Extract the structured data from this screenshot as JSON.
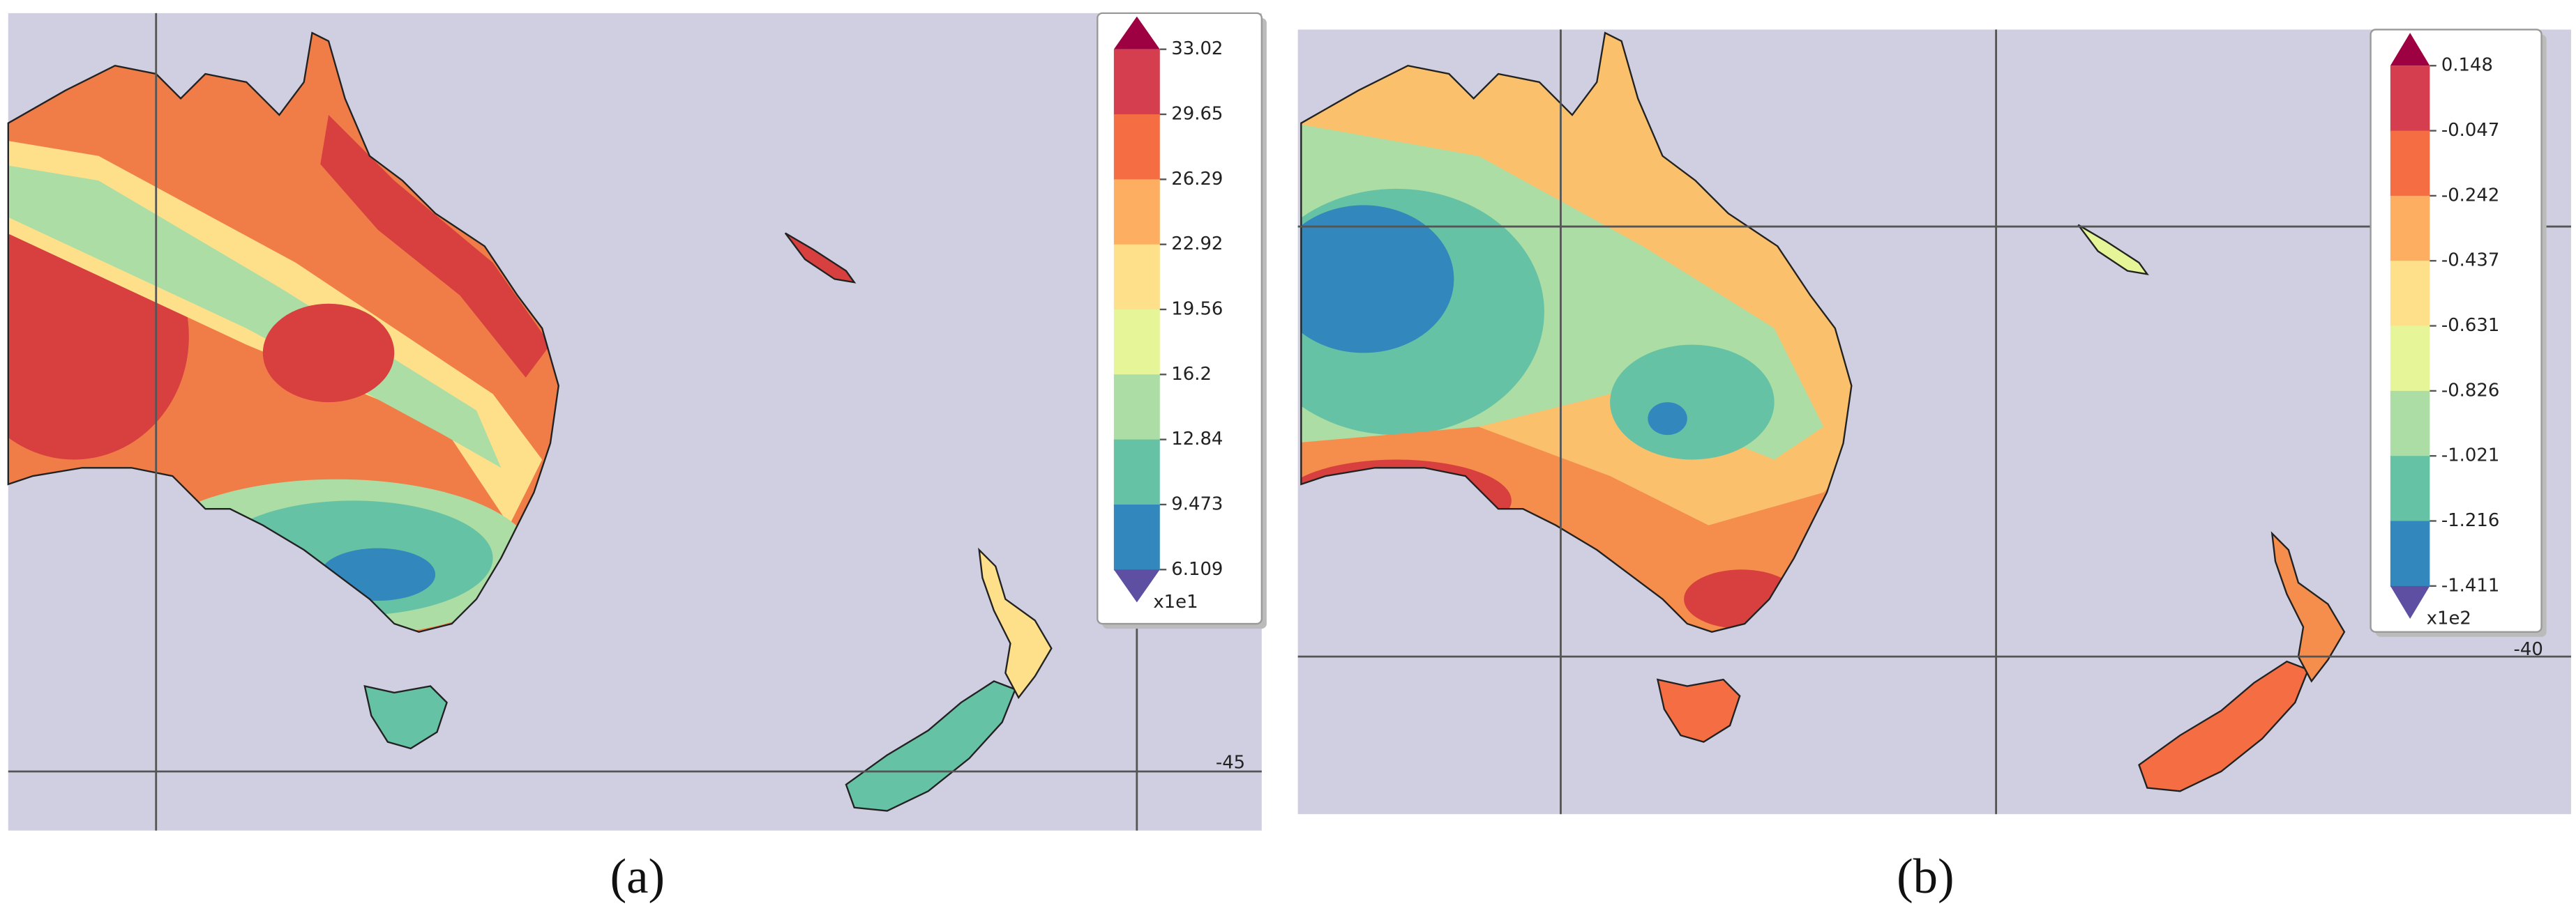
{
  "panels": [
    {
      "label": "(a)",
      "grid_label": "-45",
      "colorbar": {
        "labels": [
          "33.02",
          "29.65",
          "26.29",
          "22.92",
          "19.56",
          "16.2",
          "12.84",
          "9.473",
          "6.109"
        ],
        "multiplier": "x1e1"
      }
    },
    {
      "label": "(b)",
      "grid_label": "-40",
      "colorbar": {
        "labels": [
          "0.148",
          "-0.047",
          "-0.242",
          "-0.437",
          "-0.631",
          "-0.826",
          "-1.021",
          "-1.216",
          "-1.411"
        ],
        "multiplier": "x1e2"
      }
    }
  ],
  "colorbar_colors": {
    "over": "#9e0142",
    "under": "#5e4fa2",
    "segments": [
      "#d53e4f",
      "#f46d43",
      "#fdae61",
      "#fee08b",
      "#e6f598",
      "#abdda4",
      "#66c2a5",
      "#3288bd"
    ]
  }
}
